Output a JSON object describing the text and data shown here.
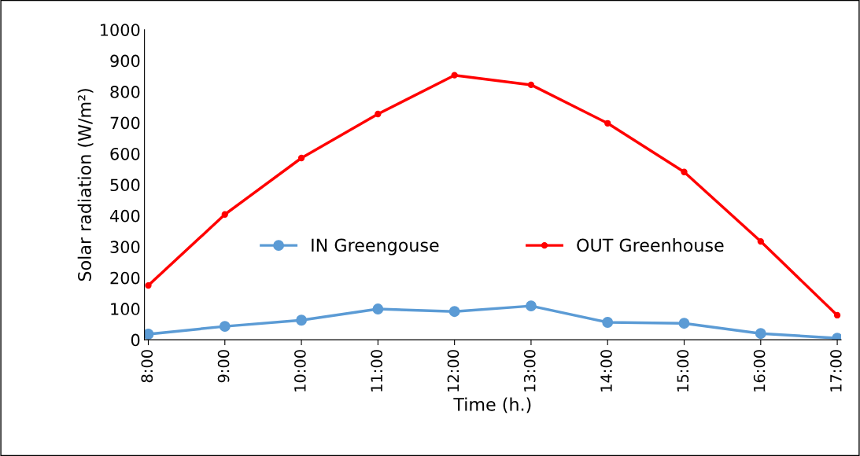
{
  "chart_data": {
    "type": "line",
    "xlabel": "Time (h.)",
    "ylabel": "Solar radiation (W/m²)",
    "categories": [
      "8:00",
      "9:00",
      "10:00",
      "11:00",
      "12:00",
      "13:00",
      "14:00",
      "15:00",
      "16:00",
      "17:00"
    ],
    "series": [
      {
        "name": "IN Greengouse",
        "color": "#5b9bd5",
        "marker": "circle",
        "values": [
          18,
          43,
          63,
          99,
          91,
          109,
          56,
          53,
          20,
          5
        ]
      },
      {
        "name": "OUT Greenhouse",
        "color": "#ff0000",
        "marker": "circle",
        "values": [
          175,
          404,
          586,
          728,
          853,
          822,
          698,
          541,
          317,
          79
        ]
      }
    ],
    "ylim": [
      0,
      1000
    ],
    "yticks": [
      0,
      100,
      200,
      300,
      400,
      500,
      600,
      700,
      800,
      900,
      1000
    ],
    "grid": false,
    "legend": "center",
    "line_style": "solid"
  }
}
